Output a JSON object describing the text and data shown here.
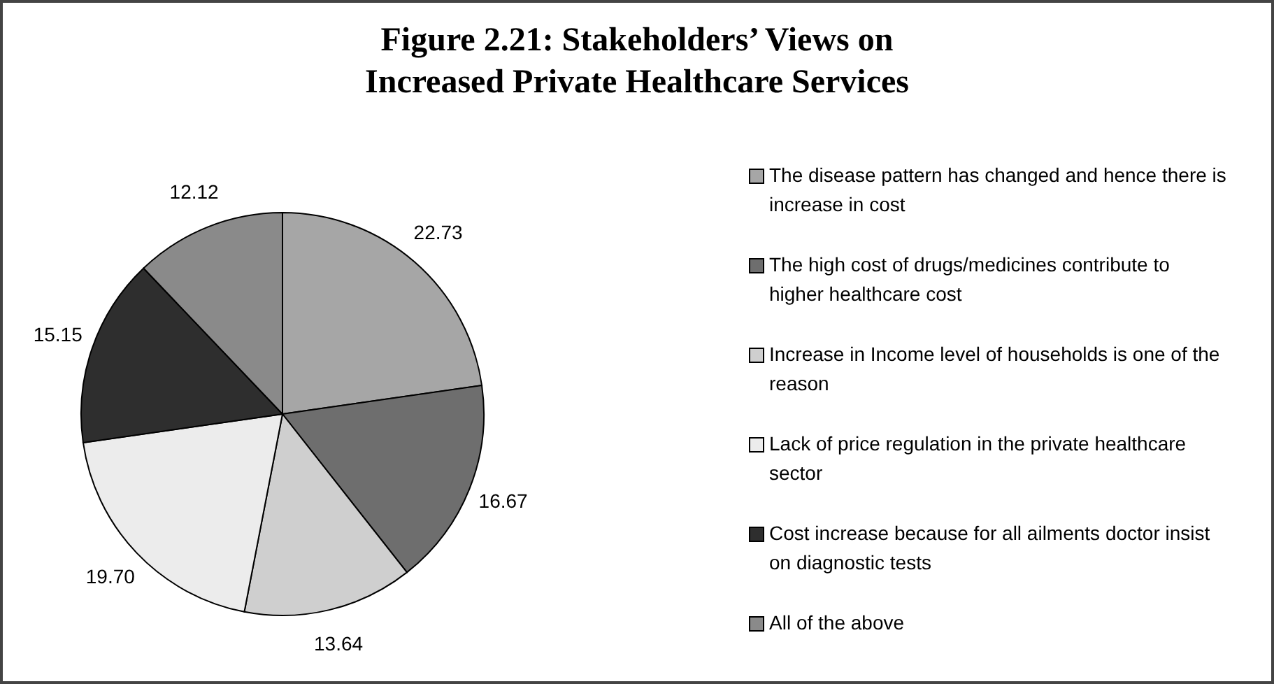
{
  "chart_data": {
    "type": "pie",
    "title": "Figure 2.21: Stakeholders’ Views on Increased Private Healthcare Services",
    "categories": [
      "The disease pattern has changed and hence there is increase in cost",
      "The high cost of drugs/medicines contribute to higher healthcare cost",
      "Increase in Income level of households is one of the reason",
      "Lack of price regulation in the private healthcare sector",
      "Cost increase because for all ailments doctor insist on diagnostic tests",
      "All of the above"
    ],
    "values": [
      22.73,
      16.67,
      13.64,
      19.7,
      15.15,
      12.12
    ],
    "value_labels": [
      "22.73",
      "16.67",
      "13.64",
      "19.70",
      "15.15",
      "12.12"
    ],
    "colors": [
      "#a6a6a6",
      "#6e6e6e",
      "#cfcfcf",
      "#ececec",
      "#2e2e2e",
      "#8a8a8a"
    ],
    "legend": "right"
  }
}
